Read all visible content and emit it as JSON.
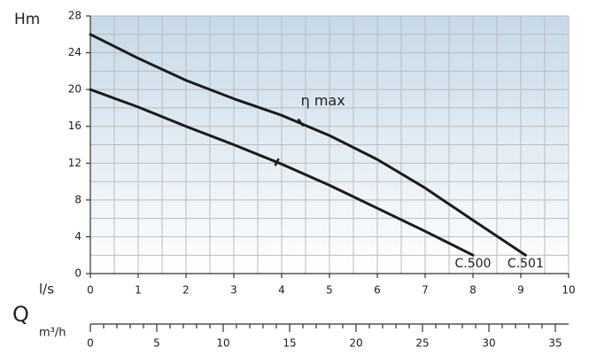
{
  "chart_data": {
    "type": "line",
    "y_label": "Hm",
    "x_label": "l/s",
    "quantity_label": "Q",
    "x2_label": "m³/h",
    "xlim": [
      0,
      10
    ],
    "xticks": [
      0,
      1,
      2,
      3,
      4,
      5,
      6,
      7,
      8,
      9,
      10
    ],
    "ylim": [
      0,
      28
    ],
    "yticks": [
      0,
      4,
      8,
      12,
      16,
      20,
      24,
      28
    ],
    "x2lim": [
      0,
      36
    ],
    "x2ticks": [
      0,
      5,
      10,
      15,
      20,
      25,
      30,
      35
    ],
    "grid": true,
    "annotation": {
      "text": "η max",
      "x": 4.4,
      "y": 16.4
    },
    "series": [
      {
        "name": "C.500",
        "color": "#1b1b1b",
        "x": [
          0,
          1,
          2,
          3,
          4,
          5,
          6,
          7,
          8
        ],
        "values": [
          20,
          18.1,
          16,
          14,
          11.9,
          9.6,
          7.1,
          4.6,
          2
        ]
      },
      {
        "name": "C.501",
        "color": "#1b1b1b",
        "x": [
          0,
          1,
          2,
          3,
          4,
          5,
          6,
          7,
          8,
          9.1
        ],
        "values": [
          26,
          23.4,
          21,
          19,
          17.2,
          15,
          12.4,
          9.3,
          5.8,
          2
        ]
      }
    ]
  }
}
